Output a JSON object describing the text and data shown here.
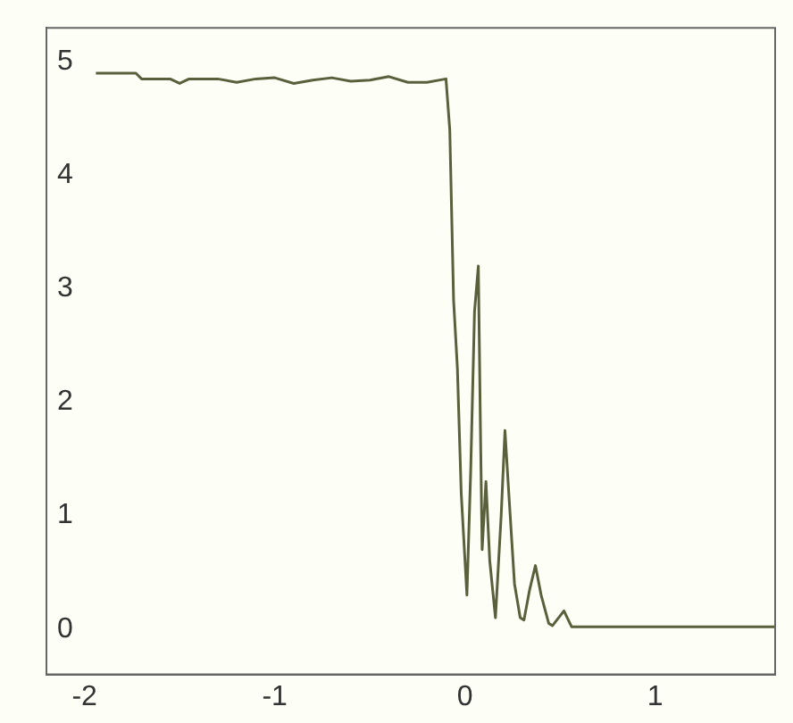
{
  "chart_data": {
    "type": "line",
    "color": "#5a5f3c",
    "marker": "none",
    "grid": false,
    "legend": false,
    "x": [
      -1.94,
      -1.73,
      -1.7,
      -1.55,
      -1.5,
      -1.45,
      -1.3,
      -1.2,
      -1.1,
      -1.0,
      -0.9,
      -0.8,
      -0.7,
      -0.6,
      -0.5,
      -0.4,
      -0.3,
      -0.2,
      -0.1,
      -0.08,
      -0.06,
      -0.04,
      -0.02,
      0.0,
      0.01,
      0.03,
      0.05,
      0.07,
      0.08,
      0.09,
      0.11,
      0.13,
      0.16,
      0.19,
      0.21,
      0.23,
      0.26,
      0.29,
      0.31,
      0.34,
      0.37,
      0.4,
      0.44,
      0.46,
      0.52,
      0.56,
      1.63
    ],
    "values": [
      4.9,
      4.9,
      4.85,
      4.85,
      4.81,
      4.85,
      4.85,
      4.82,
      4.85,
      4.86,
      4.81,
      4.84,
      4.86,
      4.83,
      4.84,
      4.87,
      4.82,
      4.82,
      4.85,
      4.4,
      2.9,
      2.3,
      1.2,
      0.6,
      0.3,
      1.4,
      2.8,
      3.2,
      1.9,
      0.7,
      1.3,
      0.6,
      0.1,
      1.0,
      1.75,
      1.2,
      0.4,
      0.1,
      0.08,
      0.35,
      0.56,
      0.3,
      0.05,
      0.03,
      0.16,
      0.02,
      0.02
    ],
    "xlim": [
      -2.2,
      1.63
    ],
    "xticks": [
      -2,
      -1,
      0,
      1
    ],
    "ylim": [
      -0.4,
      5.3
    ],
    "yticks": [
      0,
      1,
      2,
      3,
      4,
      5
    ]
  }
}
